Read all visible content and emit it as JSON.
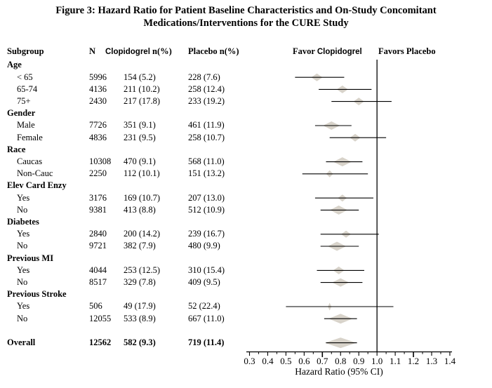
{
  "title": {
    "line1": "Figure 3: Hazard Ratio for Patient Baseline Characteristics and On-Study Concomitant",
    "line2": "Medications/Interventions for the CURE Study"
  },
  "table": {
    "headers": {
      "subgroup": "Subgroup",
      "n": "N",
      "clopidogrel_name": "Clopidogrel",
      "clopidogrel_suffix": "n(%)",
      "placebo": "Placebo n(%)"
    }
  },
  "plot": {
    "favor_left_word": "Favor",
    "favor_left_drug": "Clopidogrel",
    "favor_right": "Favors Placebo",
    "xlabel": "Hazard Ratio (95% CI)"
  },
  "colors": {
    "diamond": "#d8d3ca",
    "line": "#000000"
  },
  "chart_data": {
    "type": "forest",
    "title": "Figure 3: Hazard Ratio for Patient Baseline Characteristics and On-Study Concomitant Medications/Interventions for the CURE Study",
    "xlabel": "Hazard Ratio (95% CI)",
    "xlim": [
      0.3,
      1.4
    ],
    "xticks": [
      "0.3",
      "0.4",
      "0.5",
      "0.6",
      "0.7",
      "0.8",
      "0.9",
      "1.0",
      "1.1",
      "1.2",
      "1.3",
      "1.4"
    ],
    "long_ticks": [
      "0.7",
      "1.2"
    ],
    "reference_line": 1.0,
    "grid": false,
    "rows": [
      {
        "type": "group",
        "label": "Age"
      },
      {
        "type": "item",
        "label": "< 65",
        "n": "5996",
        "clopidogrel": "154 (5.2)",
        "placebo": "228 (7.6)",
        "hr": 0.67,
        "lo": 0.55,
        "hi": 0.82,
        "dw": 16,
        "dh": 11
      },
      {
        "type": "item",
        "label": "65-74",
        "n": "4136",
        "clopidogrel": "211 (10.2)",
        "placebo": "258 (12.4)",
        "hr": 0.81,
        "lo": 0.68,
        "hi": 0.97,
        "dw": 16,
        "dh": 11
      },
      {
        "type": "item",
        "label": "75+",
        "n": "2430",
        "clopidogrel": "217 (17.8)",
        "placebo": "233 (19.2)",
        "hr": 0.9,
        "lo": 0.75,
        "hi": 1.08,
        "dw": 15,
        "dh": 11
      },
      {
        "type": "group",
        "label": "Gender"
      },
      {
        "type": "item",
        "label": "Male",
        "n": "7726",
        "clopidogrel": "351 (9.1)",
        "placebo": "461 (11.9)",
        "hr": 0.75,
        "lo": 0.66,
        "hi": 0.86,
        "dw": 24,
        "dh": 12
      },
      {
        "type": "item",
        "label": "Female",
        "n": "4836",
        "clopidogrel": "231 (9.5)",
        "placebo": "258 (10.7)",
        "hr": 0.88,
        "lo": 0.74,
        "hi": 1.05,
        "dw": 15,
        "dh": 11
      },
      {
        "type": "group",
        "label": "Race"
      },
      {
        "type": "item",
        "label": "Caucas",
        "n": "10308",
        "clopidogrel": "470 (9.1)",
        "placebo": "568 (11.0)",
        "hr": 0.81,
        "lo": 0.72,
        "hi": 0.92,
        "dw": 26,
        "dh": 13
      },
      {
        "type": "item",
        "label": "Non-Cauc",
        "n": "2250",
        "clopidogrel": "112 (10.1)",
        "placebo": "151 (13.2)",
        "hr": 0.74,
        "lo": 0.59,
        "hi": 0.95,
        "dw": 10,
        "dh": 10
      },
      {
        "type": "group",
        "label": "Elev Card Enzy"
      },
      {
        "type": "item",
        "label": "Yes",
        "n": "3176",
        "clopidogrel": "169 (10.7)",
        "placebo": "207 (13.0)",
        "hr": 0.81,
        "lo": 0.66,
        "hi": 0.98,
        "dw": 13,
        "dh": 10
      },
      {
        "type": "item",
        "label": "No",
        "n": "9381",
        "clopidogrel": "413 (8.8)",
        "placebo": "512 (10.9)",
        "hr": 0.79,
        "lo": 0.69,
        "hi": 0.9,
        "dw": 25,
        "dh": 13
      },
      {
        "type": "group",
        "label": "Diabetes"
      },
      {
        "type": "item",
        "label": "Yes",
        "n": "2840",
        "clopidogrel": "200 (14.2)",
        "placebo": "239 (16.7)",
        "hr": 0.83,
        "lo": 0.69,
        "hi": 1.01,
        "dw": 14,
        "dh": 10
      },
      {
        "type": "item",
        "label": "No",
        "n": "9721",
        "clopidogrel": "382 (7.9)",
        "placebo": "480 (9.9)",
        "hr": 0.78,
        "lo": 0.69,
        "hi": 0.9,
        "dw": 26,
        "dh": 13
      },
      {
        "type": "group",
        "label": "Previous MI"
      },
      {
        "type": "item",
        "label": "Yes",
        "n": "4044",
        "clopidogrel": "253 (12.5)",
        "placebo": "310 (15.4)",
        "hr": 0.79,
        "lo": 0.67,
        "hi": 0.93,
        "dw": 16,
        "dh": 11
      },
      {
        "type": "item",
        "label": "No",
        "n": "8517",
        "clopidogrel": "329 (7.8)",
        "placebo": "409 (9.5)",
        "hr": 0.8,
        "lo": 0.69,
        "hi": 0.92,
        "dw": 24,
        "dh": 12
      },
      {
        "type": "group",
        "label": "Previous Stroke"
      },
      {
        "type": "item",
        "label": "Yes",
        "n": "506",
        "clopidogrel": "49 (17.9)",
        "placebo": "52 (22.4)",
        "hr": 0.74,
        "lo": 0.5,
        "hi": 1.09,
        "dw": 5,
        "dh": 11
      },
      {
        "type": "item",
        "label": "No",
        "n": "12055",
        "clopidogrel": "533 (8.9)",
        "placebo": "667 (11.0)",
        "hr": 0.8,
        "lo": 0.71,
        "hi": 0.89,
        "dw": 34,
        "dh": 14
      },
      {
        "type": "spacer"
      },
      {
        "type": "overall",
        "label": "Overall",
        "n": "12562",
        "clopidogrel": "582 (9.3)",
        "placebo": "719 (11.4)",
        "hr": 0.8,
        "lo": 0.72,
        "hi": 0.89,
        "dw": 45,
        "dh": 15
      }
    ]
  }
}
